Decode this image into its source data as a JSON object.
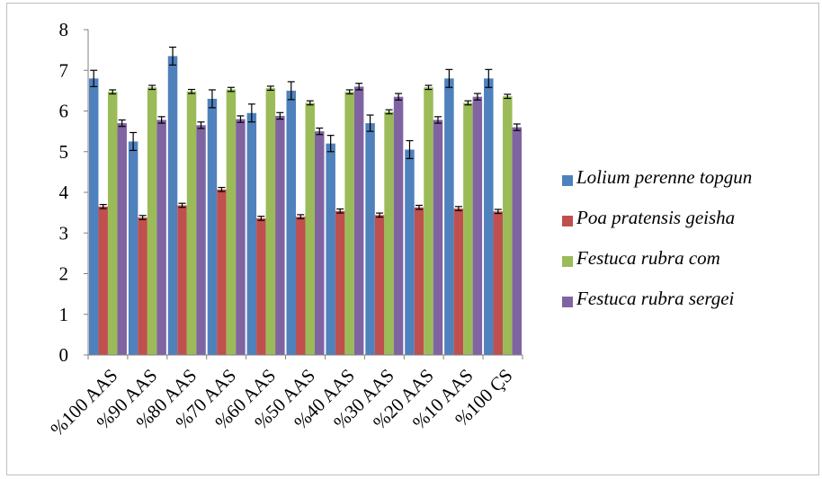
{
  "chart_data": {
    "type": "bar",
    "categories": [
      "%100 AAS",
      "%90 AAS",
      "%80 AAS",
      "%70 AAS",
      "%60 AAS",
      "%50 AAS",
      "%40 AAS",
      "%30 AAS",
      "%20 AAS",
      "%10 AAS",
      "%100 ÇS"
    ],
    "series": [
      {
        "name": "Lolium perenne topgun",
        "color": "#4f81bd",
        "values": [
          6.8,
          5.25,
          7.35,
          6.3,
          5.95,
          6.5,
          5.2,
          5.7,
          5.05,
          6.8,
          6.8
        ],
        "errors": [
          0.2,
          0.22,
          0.22,
          0.22,
          0.22,
          0.22,
          0.2,
          0.2,
          0.22,
          0.22,
          0.22
        ]
      },
      {
        "name": "Poa pratensis geisha",
        "color": "#c0504d",
        "values": [
          3.65,
          3.38,
          3.68,
          4.07,
          3.36,
          3.4,
          3.54,
          3.44,
          3.63,
          3.6,
          3.53
        ],
        "errors": [
          0.05,
          0.05,
          0.05,
          0.05,
          0.05,
          0.05,
          0.05,
          0.05,
          0.05,
          0.05,
          0.05
        ]
      },
      {
        "name": "Festuca rubra com",
        "color": "#9bbb59",
        "values": [
          6.47,
          6.58,
          6.48,
          6.53,
          6.56,
          6.2,
          6.47,
          5.98,
          6.58,
          6.2,
          6.36
        ],
        "errors": [
          0.05,
          0.05,
          0.05,
          0.05,
          0.05,
          0.05,
          0.05,
          0.05,
          0.05,
          0.05,
          0.05
        ]
      },
      {
        "name": "Festuca rubra sergei",
        "color": "#8064a2",
        "values": [
          5.7,
          5.78,
          5.65,
          5.8,
          5.88,
          5.5,
          6.6,
          6.35,
          5.78,
          6.35,
          5.6
        ],
        "errors": [
          0.08,
          0.08,
          0.08,
          0.08,
          0.08,
          0.08,
          0.08,
          0.08,
          0.08,
          0.08,
          0.08
        ]
      }
    ],
    "ylim": [
      0,
      8
    ],
    "yticks": [
      0,
      1,
      2,
      3,
      4,
      5,
      6,
      7,
      8
    ],
    "grid": false,
    "error_bars": true,
    "legend_position": "right"
  }
}
